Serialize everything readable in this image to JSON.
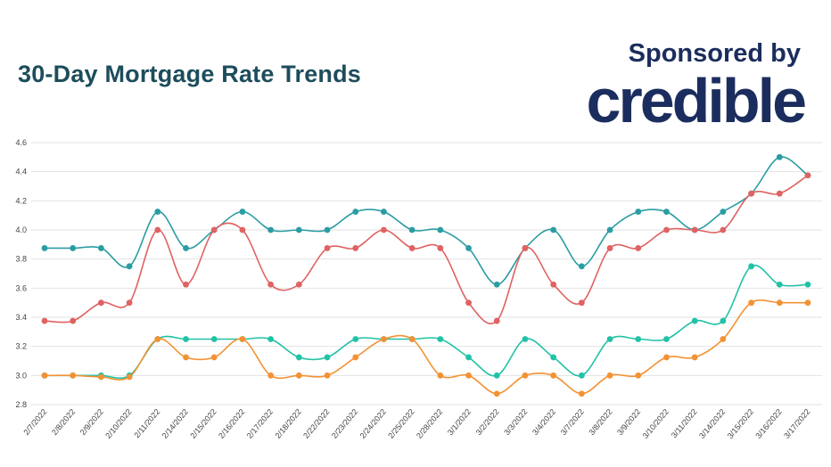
{
  "header": {
    "title": "30-Day Mortgage Rate Trends",
    "sponsor_text": "Sponsored by",
    "brand": "credible"
  },
  "colors": {
    "teal": "#2a9da3",
    "red": "#e06262",
    "green": "#22c2a6",
    "orange": "#f39234",
    "grid": "#e2e2e2",
    "title": "#1d4d5c",
    "brand": "#1b2d5e"
  },
  "chart_data": {
    "type": "line",
    "title": "30-Day Mortgage Rate Trends",
    "xlabel": "",
    "ylabel": "",
    "ylim": [
      2.8,
      4.6
    ],
    "yticks": [
      "2.8",
      "3.0",
      "3.2",
      "3.4",
      "3.6",
      "3.8",
      "4.0",
      "4.2",
      "4.4",
      "4.6"
    ],
    "grid": true,
    "legend": "none",
    "categories": [
      "2/7/2022",
      "2/8/2022",
      "2/9/2022",
      "2/10/2022",
      "2/11/2022",
      "2/14/2022",
      "2/15/2022",
      "2/16/2022",
      "2/17/2022",
      "2/18/2022",
      "2/22/2022",
      "2/23/2022",
      "2/24/2022",
      "2/25/2022",
      "2/28/2022",
      "3/1/2022",
      "3/2/2022",
      "3/3/2022",
      "3/4/2022",
      "3/7/2022",
      "3/8/2022",
      "3/9/2022",
      "3/10/2022",
      "3/11/2022",
      "3/14/2022",
      "3/15/2022",
      "3/16/2022",
      "3/17/2022"
    ],
    "series": [
      {
        "color": "#2a9da3",
        "values": [
          3.875,
          3.875,
          3.875,
          3.75,
          4.125,
          3.875,
          4.0,
          4.125,
          4.0,
          4.0,
          4.0,
          4.125,
          4.125,
          4.0,
          4.0,
          3.875,
          3.625,
          3.875,
          4.0,
          3.75,
          4.0,
          4.125,
          4.125,
          4.0,
          4.125,
          4.25,
          4.5,
          4.375
        ]
      },
      {
        "color": "#e06262",
        "values": [
          3.375,
          3.375,
          3.5,
          3.5,
          4.0,
          3.625,
          4.0,
          4.0,
          3.625,
          3.625,
          3.875,
          3.875,
          4.0,
          3.875,
          3.875,
          3.5,
          3.375,
          3.875,
          3.625,
          3.5,
          3.875,
          3.875,
          4.0,
          4.0,
          4.0,
          4.25,
          4.25,
          4.375
        ]
      },
      {
        "color": "#22c2a6",
        "values": [
          3.0,
          3.0,
          3.0,
          3.0,
          3.25,
          3.25,
          3.25,
          3.25,
          3.25,
          3.125,
          3.125,
          3.25,
          3.25,
          3.25,
          3.25,
          3.125,
          3.0,
          3.25,
          3.125,
          3.0,
          3.25,
          3.25,
          3.25,
          3.375,
          3.375,
          3.75,
          3.625,
          3.625
        ]
      },
      {
        "color": "#f39234",
        "values": [
          3.0,
          3.0,
          2.99,
          2.99,
          3.25,
          3.125,
          3.125,
          3.25,
          3.0,
          3.0,
          3.0,
          3.125,
          3.25,
          3.25,
          3.0,
          3.0,
          2.875,
          3.0,
          3.0,
          2.875,
          3.0,
          3.0,
          3.125,
          3.125,
          3.25,
          3.5,
          3.5,
          3.5
        ]
      }
    ]
  }
}
